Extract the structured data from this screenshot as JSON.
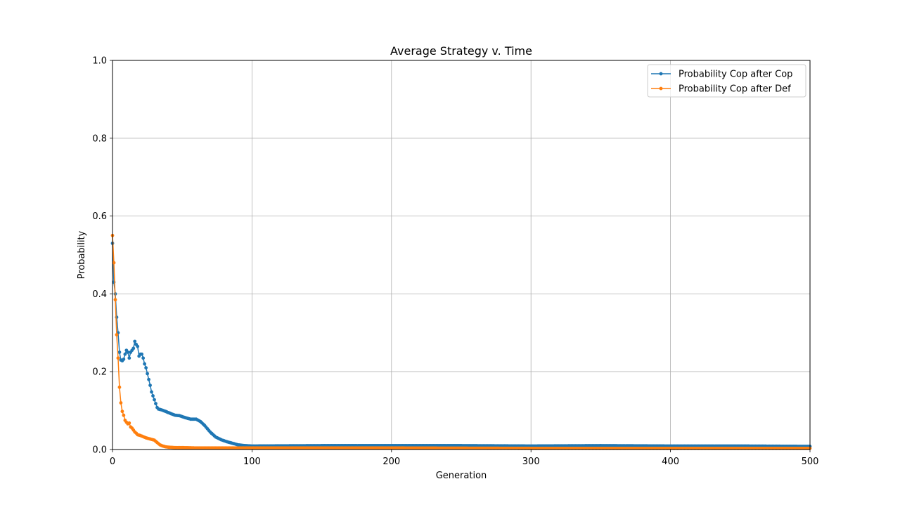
{
  "chart_data": {
    "type": "line",
    "title": "Average Strategy v. Time",
    "xlabel": "Generation",
    "ylabel": "Probability",
    "xlim": [
      0,
      500
    ],
    "ylim": [
      0,
      1.0
    ],
    "xticks": [
      "0",
      "100",
      "200",
      "300",
      "400",
      "500"
    ],
    "yticks": [
      "0.0",
      "0.2",
      "0.4",
      "0.6",
      "0.8",
      "1.0"
    ],
    "grid": true,
    "legend_position": "top-right",
    "series": [
      {
        "name": "Probability Cop after Cop",
        "color": "#1f77b4",
        "keyframes": [
          [
            0,
            0.53
          ],
          [
            1,
            0.43
          ],
          [
            2,
            0.4
          ],
          [
            3,
            0.34
          ],
          [
            4,
            0.3
          ],
          [
            5,
            0.25
          ],
          [
            6,
            0.23
          ],
          [
            7,
            0.228
          ],
          [
            8,
            0.232
          ],
          [
            9,
            0.245
          ],
          [
            10,
            0.255
          ],
          [
            11,
            0.25
          ],
          [
            12,
            0.235
          ],
          [
            13,
            0.25
          ],
          [
            14,
            0.255
          ],
          [
            15,
            0.26
          ],
          [
            16,
            0.278
          ],
          [
            17,
            0.27
          ],
          [
            18,
            0.265
          ],
          [
            19,
            0.24
          ],
          [
            20,
            0.245
          ],
          [
            21,
            0.245
          ],
          [
            22,
            0.235
          ],
          [
            23,
            0.22
          ],
          [
            24,
            0.21
          ],
          [
            25,
            0.195
          ],
          [
            26,
            0.18
          ],
          [
            27,
            0.165
          ],
          [
            28,
            0.148
          ],
          [
            29,
            0.138
          ],
          [
            30,
            0.128
          ],
          [
            31,
            0.118
          ],
          [
            32,
            0.108
          ],
          [
            33,
            0.104
          ],
          [
            35,
            0.102
          ],
          [
            38,
            0.098
          ],
          [
            42,
            0.092
          ],
          [
            45,
            0.088
          ],
          [
            48,
            0.087
          ],
          [
            52,
            0.082
          ],
          [
            56,
            0.078
          ],
          [
            60,
            0.078
          ],
          [
            63,
            0.072
          ],
          [
            66,
            0.062
          ],
          [
            70,
            0.045
          ],
          [
            74,
            0.032
          ],
          [
            78,
            0.025
          ],
          [
            82,
            0.02
          ],
          [
            86,
            0.016
          ],
          [
            90,
            0.012
          ],
          [
            95,
            0.01
          ],
          [
            100,
            0.009
          ],
          [
            150,
            0.01
          ],
          [
            200,
            0.01
          ],
          [
            250,
            0.01
          ],
          [
            300,
            0.009
          ],
          [
            350,
            0.01
          ],
          [
            400,
            0.009
          ],
          [
            450,
            0.009
          ],
          [
            500,
            0.008
          ]
        ]
      },
      {
        "name": "Probability Cop after Def",
        "color": "#ff7f0e",
        "keyframes": [
          [
            0,
            0.55
          ],
          [
            1,
            0.48
          ],
          [
            2,
            0.385
          ],
          [
            3,
            0.295
          ],
          [
            4,
            0.235
          ],
          [
            5,
            0.16
          ],
          [
            6,
            0.12
          ],
          [
            7,
            0.098
          ],
          [
            8,
            0.088
          ],
          [
            9,
            0.075
          ],
          [
            10,
            0.07
          ],
          [
            11,
            0.066
          ],
          [
            12,
            0.068
          ],
          [
            13,
            0.058
          ],
          [
            14,
            0.055
          ],
          [
            15,
            0.05
          ],
          [
            16,
            0.045
          ],
          [
            17,
            0.042
          ],
          [
            18,
            0.038
          ],
          [
            20,
            0.036
          ],
          [
            22,
            0.033
          ],
          [
            24,
            0.03
          ],
          [
            26,
            0.028
          ],
          [
            28,
            0.026
          ],
          [
            30,
            0.024
          ],
          [
            32,
            0.018
          ],
          [
            34,
            0.012
          ],
          [
            36,
            0.009
          ],
          [
            38,
            0.007
          ],
          [
            40,
            0.006
          ],
          [
            45,
            0.005
          ],
          [
            50,
            0.005
          ],
          [
            60,
            0.004
          ],
          [
            80,
            0.004
          ],
          [
            100,
            0.004
          ],
          [
            200,
            0.004
          ],
          [
            300,
            0.003
          ],
          [
            400,
            0.003
          ],
          [
            500,
            0.003
          ]
        ]
      }
    ]
  }
}
